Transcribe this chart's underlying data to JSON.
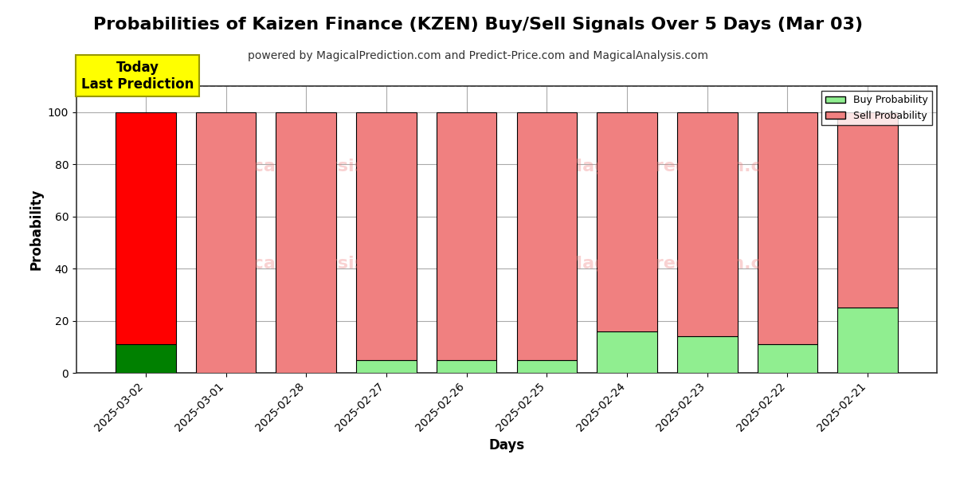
{
  "title": "Probabilities of Kaizen Finance (KZEN) Buy/Sell Signals Over 5 Days (Mar 03)",
  "subtitle": "powered by MagicalPrediction.com and Predict-Price.com and MagicalAnalysis.com",
  "xlabel": "Days",
  "ylabel": "Probability",
  "ylim": [
    0,
    110
  ],
  "yticks": [
    0,
    20,
    40,
    60,
    80,
    100
  ],
  "dashed_line_y": 110,
  "categories": [
    "2025-03-02",
    "2025-03-01",
    "2025-02-28",
    "2025-02-27",
    "2025-02-26",
    "2025-02-25",
    "2025-02-24",
    "2025-02-23",
    "2025-02-22",
    "2025-02-21"
  ],
  "buy_probs": [
    11,
    0,
    0,
    5,
    5,
    5,
    16,
    14,
    11,
    25
  ],
  "sell_probs": [
    89,
    100,
    100,
    95,
    95,
    95,
    84,
    86,
    89,
    75
  ],
  "today_label": "Today\nLast Prediction",
  "today_index": 0,
  "today_buy_color": "#008000",
  "today_sell_color": "#ff0000",
  "buy_color": "#90ee90",
  "sell_color": "#f08080",
  "legend_buy_label": "Buy Probability",
  "legend_sell_label": "Sell Probability",
  "watermark_color": "#f08080",
  "background_color": "#ffffff",
  "bar_edge_color": "#000000",
  "grid_color": "#aaaaaa",
  "title_fontsize": 16,
  "subtitle_fontsize": 10,
  "label_fontsize": 12,
  "tick_fontsize": 10
}
